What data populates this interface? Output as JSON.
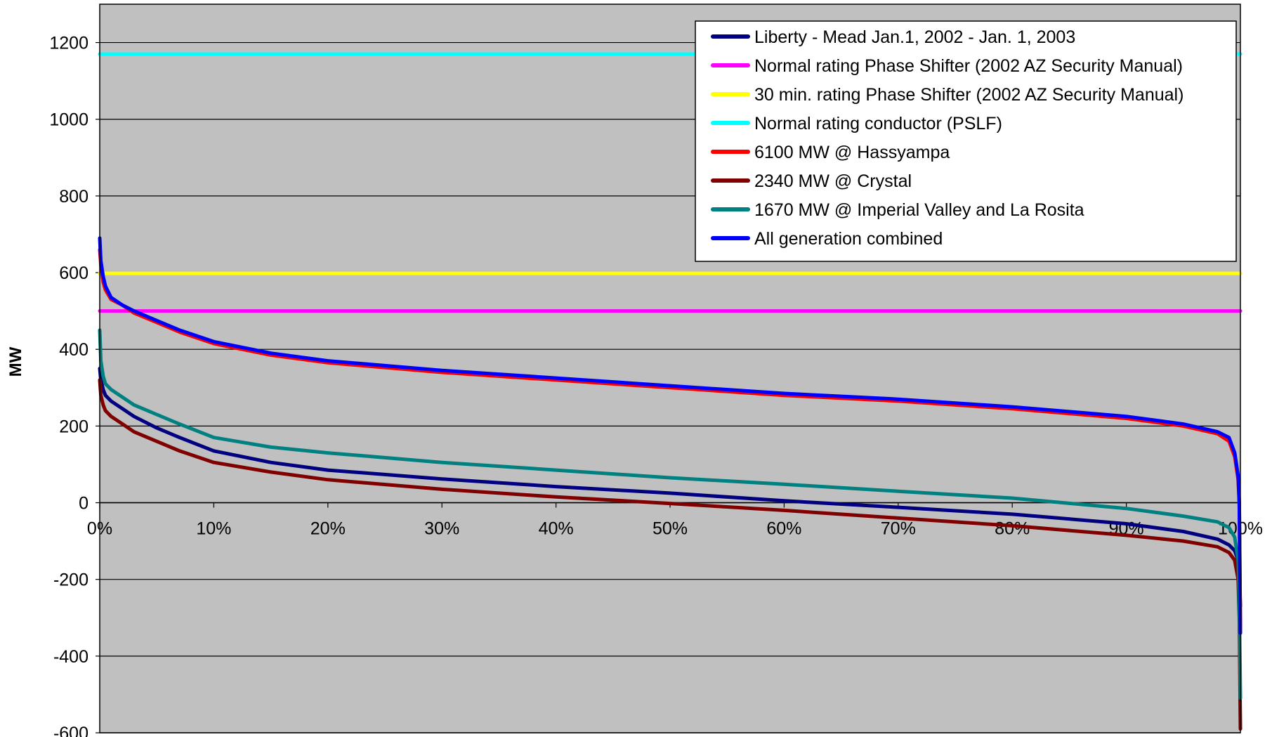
{
  "chart_data": {
    "type": "line",
    "title": "",
    "xlabel": "",
    "ylabel": "MW",
    "xlim": [
      0,
      100
    ],
    "ylim": [
      -600,
      1300
    ],
    "x_ticks": [
      "0%",
      "10%",
      "20%",
      "30%",
      "40%",
      "50%",
      "60%",
      "70%",
      "80%",
      "90%",
      "100%"
    ],
    "y_ticks": [
      "-600",
      "-400",
      "-200",
      "0",
      "200",
      "400",
      "600",
      "800",
      "1000",
      "1200"
    ],
    "grid": "horizontal",
    "plot_background": "#c0c0c0",
    "legend_position": "top-right",
    "x": [
      0,
      0.1,
      0.3,
      0.5,
      1,
      2,
      3,
      5,
      7,
      10,
      15,
      20,
      30,
      40,
      50,
      60,
      70,
      80,
      90,
      95,
      98,
      99,
      99.5,
      99.8,
      99.9,
      100
    ],
    "series": [
      {
        "name": "Liberty - Mead Jan.1, 2002 - Jan. 1, 2003",
        "color": "#000080",
        "values": [
          350,
          320,
          295,
          280,
          265,
          245,
          225,
          195,
          170,
          135,
          105,
          85,
          62,
          42,
          25,
          5,
          -12,
          -30,
          -55,
          -75,
          -95,
          -110,
          -125,
          -150,
          -200,
          -270
        ]
      },
      {
        "name": "Normal rating Phase Shifter (2002 AZ Security Manual)",
        "color": "#ff00ff",
        "values": [
          500,
          500,
          500,
          500,
          500,
          500,
          500,
          500,
          500,
          500,
          500,
          500,
          500,
          500,
          500,
          500,
          500,
          500,
          500,
          500,
          500,
          500,
          500,
          500,
          500,
          500
        ]
      },
      {
        "name": "30 min. rating Phase Shifter (2002 AZ Security Manual)",
        "color": "#ffff00",
        "values": [
          598,
          598,
          598,
          598,
          598,
          598,
          598,
          598,
          598,
          598,
          598,
          598,
          598,
          598,
          598,
          598,
          598,
          598,
          598,
          598,
          598,
          598,
          598,
          598,
          598,
          598
        ]
      },
      {
        "name": "Normal rating conductor (PSLF)",
        "color": "#00ffff",
        "values": [
          1170,
          1170,
          1170,
          1170,
          1170,
          1170,
          1170,
          1170,
          1170,
          1170,
          1170,
          1170,
          1170,
          1170,
          1170,
          1170,
          1170,
          1170,
          1170,
          1170,
          1170,
          1170,
          1170,
          1170,
          1170,
          1170
        ]
      },
      {
        "name": "6100 MW @ Hassyampa",
        "color": "#ff0000",
        "values": [
          660,
          620,
          575,
          555,
          530,
          515,
          495,
          470,
          445,
          415,
          385,
          365,
          340,
          320,
          300,
          280,
          265,
          245,
          220,
          200,
          180,
          160,
          120,
          60,
          0,
          -330
        ]
      },
      {
        "name": "2340 MW @ Crystal",
        "color": "#800000",
        "values": [
          320,
          280,
          255,
          240,
          225,
          205,
          185,
          160,
          135,
          105,
          80,
          60,
          35,
          15,
          -2,
          -20,
          -40,
          -60,
          -85,
          -100,
          -115,
          -130,
          -150,
          -200,
          -300,
          -590
        ]
      },
      {
        "name": "1670 MW @ Imperial Valley and La Rosita",
        "color": "#008080",
        "values": [
          450,
          370,
          330,
          310,
          295,
          275,
          255,
          230,
          205,
          170,
          145,
          130,
          105,
          85,
          65,
          48,
          30,
          12,
          -15,
          -35,
          -50,
          -65,
          -90,
          -150,
          -250,
          -510
        ]
      },
      {
        "name": "All generation combined",
        "color": "#0000ff",
        "values": [
          690,
          630,
          590,
          565,
          535,
          515,
          500,
          475,
          450,
          420,
          390,
          370,
          345,
          325,
          305,
          285,
          270,
          250,
          225,
          205,
          185,
          170,
          130,
          70,
          0,
          -340
        ]
      }
    ]
  }
}
